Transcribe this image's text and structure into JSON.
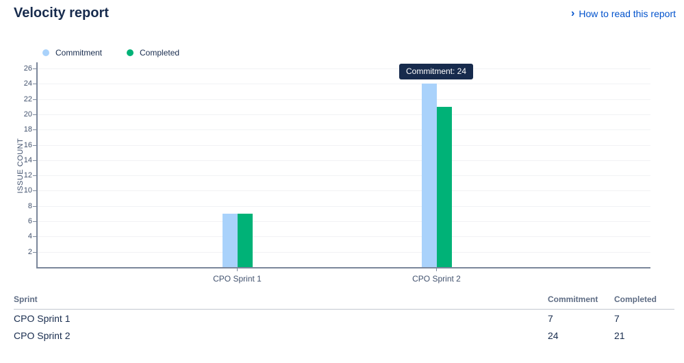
{
  "page_title": "Velocity report",
  "help": {
    "chevron": "›",
    "label": "How to read this report"
  },
  "chart_data": {
    "type": "bar",
    "title": "",
    "categories": [
      "CPO Sprint 1",
      "CPO Sprint 2"
    ],
    "series": [
      {
        "name": "Commitment",
        "color": "#A9D2FB",
        "values": [
          7,
          24
        ]
      },
      {
        "name": "Completed",
        "color": "#00B277",
        "values": [
          7,
          21
        ]
      }
    ],
    "xlabel": "",
    "ylabel": "ISSUE COUNT",
    "ylim": [
      0,
      26
    ],
    "ytick_step": 2,
    "grid": true,
    "legend_position": "top-left",
    "tooltip": {
      "text": "Commitment: 24",
      "series": "Commitment",
      "category": "CPO Sprint 2",
      "value": 24
    }
  },
  "table": {
    "columns": [
      "Sprint",
      "Commitment",
      "Completed"
    ],
    "rows": [
      [
        "CPO Sprint 1",
        "7",
        "7"
      ],
      [
        "CPO Sprint 2",
        "24",
        "21"
      ]
    ]
  },
  "colors": {
    "title": "#172B4D",
    "link": "#0052CC",
    "axis": "#7A869A",
    "gridline": "#F1F2F4",
    "tooltip_bg": "#172B4D"
  }
}
